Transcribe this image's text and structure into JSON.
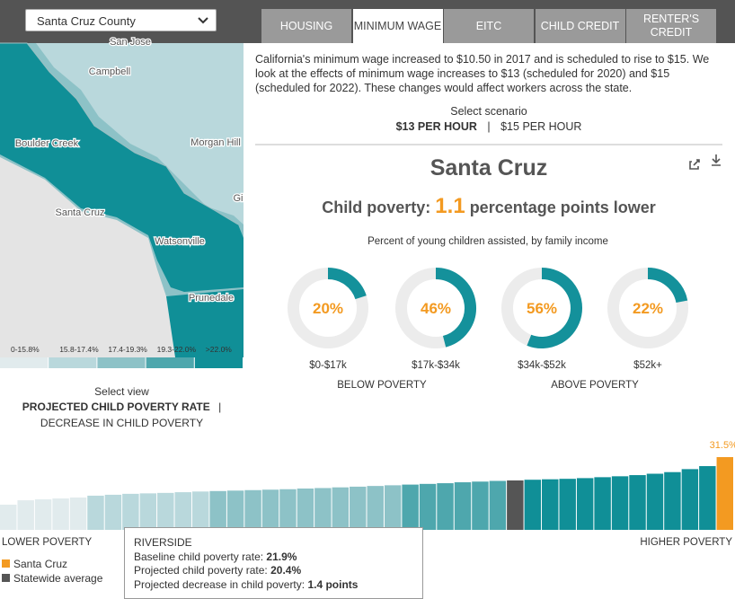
{
  "county_select": "Santa Cruz County",
  "tabs": [
    "HOUSING",
    "MINIMUM WAGE",
    "EITC",
    "CHILD CREDIT",
    "RENTER'S CREDIT"
  ],
  "map": {
    "labels": [
      "San Jose",
      "Campbell",
      "Boulder Creek",
      "Morgan Hill",
      "Santa Cruz",
      "Gi",
      "Watsonville",
      "Prunedale"
    ],
    "legend": [
      {
        "label": "0-15.8%",
        "color": "#e1ebed"
      },
      {
        "label": "15.8-17.4%",
        "color": "#b9d8dc"
      },
      {
        "label": "17.4-19.3%",
        "color": "#8dc2c7"
      },
      {
        "label": "19.3-22.0%",
        "color": "#4ea7ad"
      },
      {
        "label": ">22.0%",
        "color": "#108f97"
      }
    ]
  },
  "description": "California's minimum wage increased to $10.50 in 2017 and is scheduled to rise to $15. We look at the effects of minimum wage increases to $13 (scheduled for 2020) and $15 (scheduled for 2022). These changes would affect workers across the state.",
  "scenario": {
    "label": "Select scenario",
    "options": [
      "$13 PER HOUR",
      "$15 PER HOUR"
    ],
    "separator": "|"
  },
  "county_name": "Santa Cruz",
  "headline": {
    "prefix": "Child poverty:",
    "value": "1.1",
    "suffix": "percentage points lower"
  },
  "chart_data": [
    {
      "type": "donut",
      "title": "Percent of young children assisted, by family income",
      "categories": [
        "$0-$17k",
        "$17k-$34k",
        "$34k-$52k",
        "$52k+"
      ],
      "values": [
        20,
        46,
        56,
        22
      ],
      "value_labels": [
        "20%",
        "46%",
        "56%",
        "22%"
      ],
      "color": "#14919b",
      "track_color": "#ececec",
      "label_color": "#f39a21",
      "groups": [
        "BELOW POVERTY",
        "ABOVE POVERTY"
      ]
    },
    {
      "type": "bar",
      "values": [
        10.9,
        12.8,
        13.2,
        13.6,
        14.0,
        14.8,
        15.2,
        15.6,
        15.8,
        16.0,
        16.3,
        16.6,
        16.8,
        17.0,
        17.2,
        17.4,
        17.6,
        17.9,
        18.1,
        18.4,
        18.7,
        19.0,
        19.3,
        19.6,
        19.9,
        20.2,
        20.6,
        20.9,
        21.2,
        21.4,
        21.7,
        21.9,
        22.1,
        22.4,
        22.8,
        23.2,
        23.7,
        24.3,
        25.0,
        26.3,
        27.6,
        31.5
      ],
      "value_labels": [
        null,
        null,
        null,
        null,
        null,
        null,
        null,
        null,
        null,
        null,
        null,
        null,
        null,
        null,
        null,
        null,
        null,
        null,
        null,
        null,
        null,
        null,
        null,
        null,
        null,
        null,
        null,
        null,
        null,
        null,
        null,
        null,
        null,
        null,
        null,
        null,
        null,
        null,
        null,
        null,
        null,
        "31.5%"
      ],
      "colors": [
        "#e1ebed",
        "#e1ebed",
        "#e1ebed",
        "#e1ebed",
        "#e1ebed",
        "#b9d8dc",
        "#b9d8dc",
        "#b9d8dc",
        "#b9d8dc",
        "#b9d8dc",
        "#b9d8dc",
        "#b9d8dc",
        "#8dc2c7",
        "#8dc2c7",
        "#8dc2c7",
        "#8dc2c7",
        "#8dc2c7",
        "#8dc2c7",
        "#8dc2c7",
        "#8dc2c7",
        "#8dc2c7",
        "#8dc2c7",
        "#8dc2c7",
        "#4ea7ad",
        "#4ea7ad",
        "#4ea7ad",
        "#4ea7ad",
        "#4ea7ad",
        "#4ea7ad",
        "#555555",
        "#108f97",
        "#108f97",
        "#108f97",
        "#108f97",
        "#108f97",
        "#108f97",
        "#108f97",
        "#108f97",
        "#108f97",
        "#108f97",
        "#108f97",
        "#f39a21"
      ],
      "value_label_color": "#f39a21",
      "x_label_left": "LOWER POVERTY",
      "x_label_right": "HIGHER POVERTY",
      "legend": [
        {
          "name": "Santa Cruz",
          "color": "#f39a21"
        },
        {
          "name": "Statewide average",
          "color": "#555555"
        }
      ]
    }
  ],
  "view": {
    "label": "Select view",
    "options": [
      "PROJECTED CHILD POVERTY RATE",
      "DECREASE IN CHILD POVERTY"
    ],
    "separator": "|"
  },
  "tooltip": {
    "title": "RIVERSIDE",
    "rows": [
      {
        "label": "Baseline child poverty rate:",
        "value": "21.9%"
      },
      {
        "label": "Projected child poverty rate:",
        "value": "20.4%"
      },
      {
        "label": "Projected decrease in child poverty:",
        "value": "1.4 points"
      }
    ]
  }
}
